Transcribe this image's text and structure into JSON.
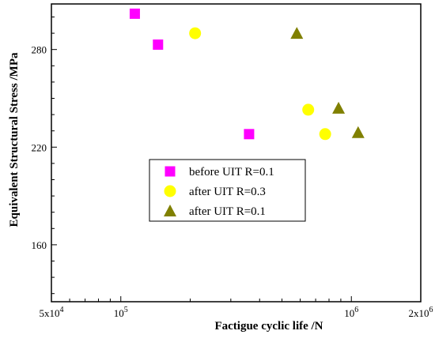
{
  "chart_data": {
    "type": "scatter",
    "title": "",
    "xlabel": "Factigue cyclic life /N",
    "ylabel": "Equivalent Structural Stress /MPa",
    "xscale": "log",
    "xlim": [
      50000,
      2000000
    ],
    "ylim": [
      125,
      308
    ],
    "x_ticks": [
      {
        "value": 50000,
        "base": "5x10",
        "exp": "4"
      },
      {
        "value": 100000,
        "base": "10",
        "exp": "5"
      },
      {
        "value": 1000000,
        "base": "10",
        "exp": "6"
      },
      {
        "value": 2000000,
        "base": "2x10",
        "exp": "6"
      }
    ],
    "y_ticks": [
      160,
      220,
      280
    ],
    "legend_position": "center",
    "series": [
      {
        "name": "before UIT R=0.1",
        "marker": "square",
        "color": "#ff00ff",
        "points": [
          [
            115000,
            302
          ],
          [
            145000,
            283
          ],
          [
            360000,
            228
          ]
        ]
      },
      {
        "name": "after UIT R=0.3",
        "marker": "circle",
        "color": "#ffff00",
        "points": [
          [
            210000,
            290
          ],
          [
            650000,
            243
          ],
          [
            770000,
            228
          ]
        ]
      },
      {
        "name": "after UIT R=0.1",
        "marker": "triangle",
        "color": "#808000",
        "points": [
          [
            580000,
            290
          ],
          [
            880000,
            244
          ],
          [
            1070000,
            229
          ]
        ]
      }
    ]
  }
}
